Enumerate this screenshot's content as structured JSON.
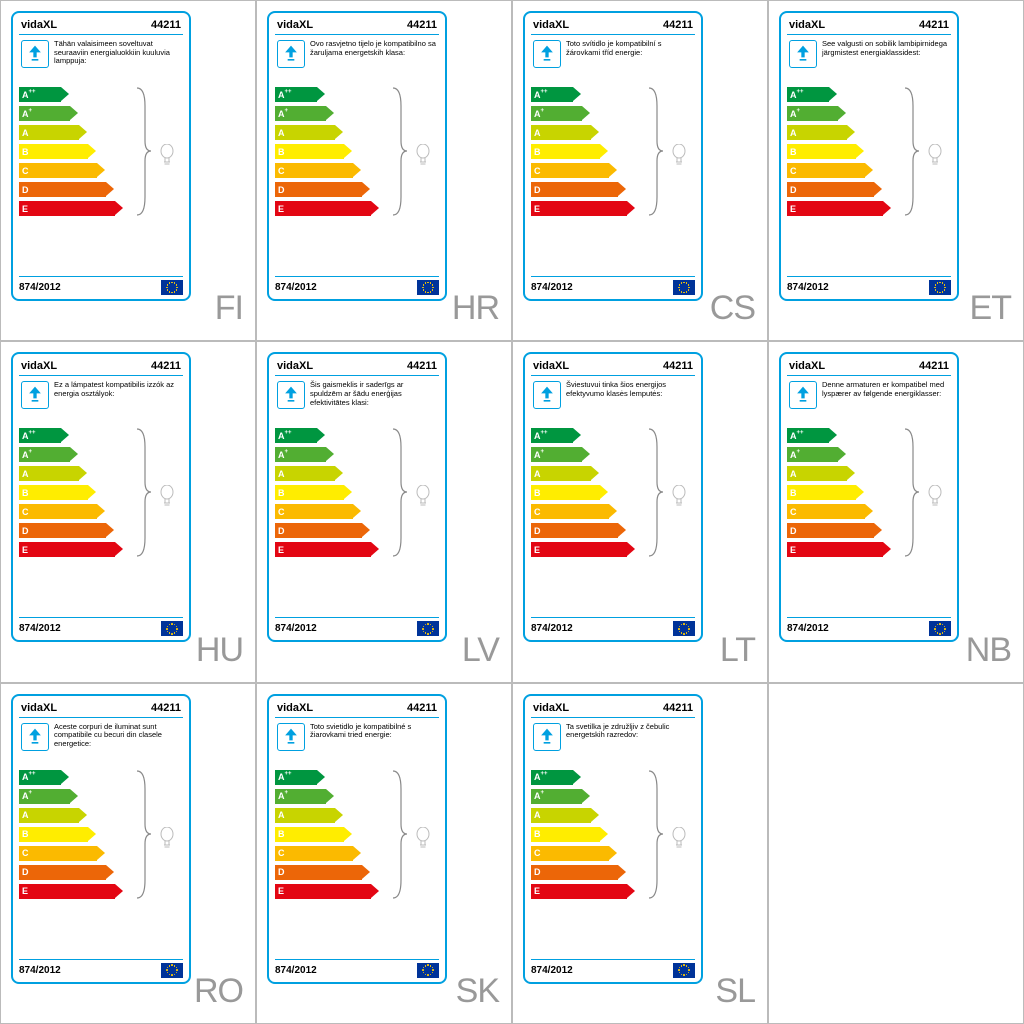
{
  "brand": "vidaXL",
  "model": "44211",
  "regulation": "874/2012",
  "energy_classes": [
    {
      "label": "A",
      "sup": "++",
      "color": "#009640",
      "width": 18
    },
    {
      "label": "A",
      "sup": "+",
      "color": "#52ae32",
      "width": 27
    },
    {
      "label": "A",
      "sup": "",
      "color": "#c8d400",
      "width": 36
    },
    {
      "label": "B",
      "sup": "",
      "color": "#ffed00",
      "width": 45
    },
    {
      "label": "C",
      "sup": "",
      "color": "#fbba00",
      "width": 54
    },
    {
      "label": "D",
      "sup": "",
      "color": "#ec6608",
      "width": 63
    },
    {
      "label": "E",
      "sup": "",
      "color": "#e30613",
      "width": 72
    }
  ],
  "labels": [
    {
      "code": "FI",
      "desc": "Tähän valaisimeen soveltuvat seuraaviin energialuokkiin kuuluvia lamppuja:"
    },
    {
      "code": "HR",
      "desc": "Ovo rasvjetno tijelo je kompatibilno sa žaruljama energetskih klasa:"
    },
    {
      "code": "CS",
      "desc": "Toto svítidlo je kompatibilní s žárovkami tříd energie:"
    },
    {
      "code": "ET",
      "desc": "See valgusti on sobilik lambipirnidega järgmistest energiaklassidest:"
    },
    {
      "code": "HU",
      "desc": "Ez a lámpatest kompatibilis izzók az energia osztályok:"
    },
    {
      "code": "LV",
      "desc": "Šis gaismeklis ir saderīgs ar spuldzēm ar šādu enerģijas efektivitātes klasi:"
    },
    {
      "code": "LT",
      "desc": "Šviestuvui tinka šios energijos efektyvumo klasės lemputės:"
    },
    {
      "code": "NB",
      "desc": "Denne armaturen er kompatibel med lyspærer av følgende energiklasser:"
    },
    {
      "code": "RO",
      "desc": "Aceste corpuri de iluminat sunt compatibile cu becuri din clasele energetice:"
    },
    {
      "code": "SK",
      "desc": "Toto svietidlo je kompatibilné s žiarovkami tried energie:"
    },
    {
      "code": "SL",
      "desc": "Ta svetilka je združljiv z čebulic energetskih razredov:"
    }
  ],
  "style": {
    "border_color": "#00a0e0",
    "code_color": "#999999",
    "cell_border": "#bbbbbb"
  }
}
